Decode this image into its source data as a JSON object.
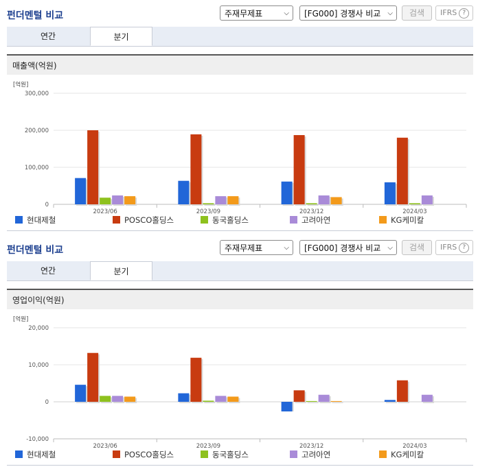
{
  "title": "펀더멘털 비교",
  "controls": {
    "select1": "주재무제표",
    "select2": "[FG000] 경쟁사 비교",
    "search": "검색",
    "ifrs": "IFRS"
  },
  "tabs": [
    "연간",
    "분기"
  ],
  "active_tab": "분기",
  "colors": {
    "현대제철": "#2166d8",
    "POSCO홀딩스": "#c83b10",
    "동국홀딩스": "#8ec11e",
    "고려아연": "#a98bd8",
    "KG케미칼": "#f39a1b"
  },
  "chart_data": [
    {
      "type": "bar",
      "title": "매출액(억원)",
      "unit": "[억원]",
      "categories": [
        "2023/06",
        "2023/09",
        "2023/12",
        "2024/03"
      ],
      "series": [
        {
          "name": "현대제철",
          "values": [
            71000,
            63500,
            61500,
            59500
          ]
        },
        {
          "name": "POSCO홀딩스",
          "values": [
            200000,
            189000,
            187000,
            180000
          ]
        },
        {
          "name": "동국홀딩스",
          "values": [
            18000,
            3000,
            3000,
            3000
          ]
        },
        {
          "name": "고려아연",
          "values": [
            24000,
            22000,
            24000,
            24000
          ]
        },
        {
          "name": "KG케미칼",
          "values": [
            22000,
            22000,
            19500,
            0
          ]
        }
      ],
      "yticks": [
        "300,000",
        "200,000",
        "100,000",
        "0"
      ],
      "ylim": [
        0,
        300000
      ]
    },
    {
      "type": "bar",
      "title": "영업이익(억원)",
      "unit": "[억원]",
      "categories": [
        "2023/06",
        "2023/09",
        "2023/12",
        "2024/03"
      ],
      "series": [
        {
          "name": "현대제철",
          "values": [
            4600,
            2300,
            -2600,
            500
          ]
        },
        {
          "name": "POSCO홀딩스",
          "values": [
            13200,
            11900,
            3100,
            5800
          ]
        },
        {
          "name": "동국홀딩스",
          "values": [
            1600,
            300,
            200,
            0
          ]
        },
        {
          "name": "고려아연",
          "values": [
            1600,
            1600,
            1900,
            1900
          ]
        },
        {
          "name": "KG케미칼",
          "values": [
            1400,
            1400,
            200,
            0
          ]
        }
      ],
      "yticks": [
        "20,000",
        "10,000",
        "0",
        "-10,000"
      ],
      "ylim": [
        -10000,
        20000
      ]
    }
  ]
}
